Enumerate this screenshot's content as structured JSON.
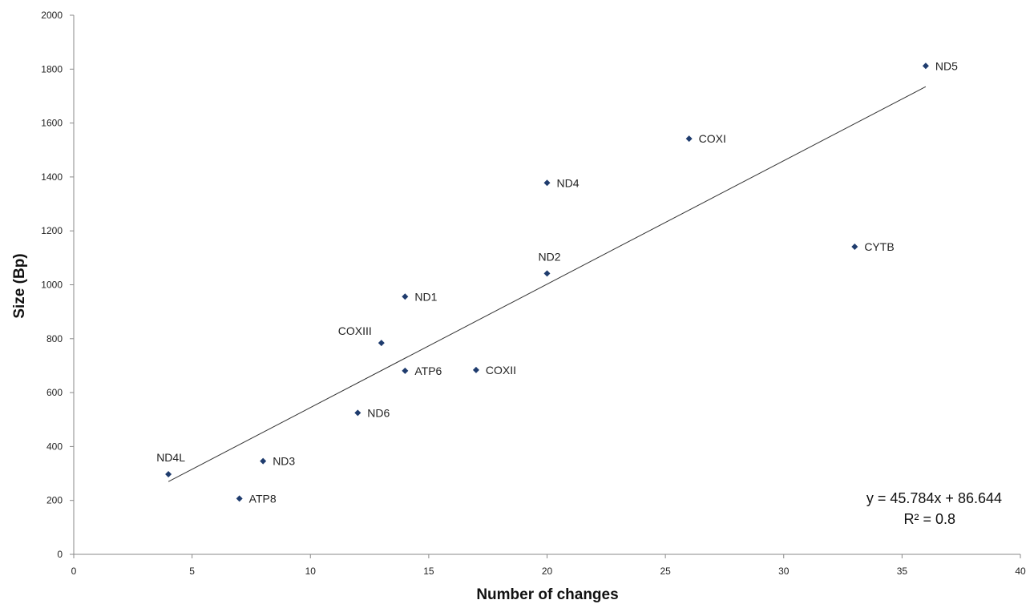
{
  "chart_data": {
    "type": "scatter",
    "title": "",
    "xlabel": "Number of changes",
    "ylabel": "Size (Bp)",
    "xlim": [
      0,
      40
    ],
    "ylim": [
      0,
      2000
    ],
    "x_ticks": [
      0,
      5,
      10,
      15,
      20,
      25,
      30,
      35,
      40
    ],
    "y_ticks": [
      0,
      200,
      400,
      600,
      800,
      1000,
      1200,
      1400,
      1600,
      1800,
      2000
    ],
    "grid": false,
    "legend": "none",
    "marker_color": "#1f3c6e",
    "points": [
      {
        "label": "ND4L",
        "x": 4,
        "y": 297,
        "label_pos": "above"
      },
      {
        "label": "ATP8",
        "x": 7,
        "y": 207,
        "label_pos": "right"
      },
      {
        "label": "ND3",
        "x": 8,
        "y": 346,
        "label_pos": "right"
      },
      {
        "label": "ND6",
        "x": 12,
        "y": 525,
        "label_pos": "right"
      },
      {
        "label": "COXIII",
        "x": 13,
        "y": 784,
        "label_pos": "above-left"
      },
      {
        "label": "ND1",
        "x": 14,
        "y": 956,
        "label_pos": "right"
      },
      {
        "label": "ATP6",
        "x": 14,
        "y": 681,
        "label_pos": "right"
      },
      {
        "label": "COXII",
        "x": 17,
        "y": 684,
        "label_pos": "right"
      },
      {
        "label": "ND2",
        "x": 20,
        "y": 1042,
        "label_pos": "above"
      },
      {
        "label": "ND4",
        "x": 20,
        "y": 1378,
        "label_pos": "right"
      },
      {
        "label": "COXI",
        "x": 26,
        "y": 1542,
        "label_pos": "right"
      },
      {
        "label": "CYTB",
        "x": 33,
        "y": 1141,
        "label_pos": "right"
      },
      {
        "label": "ND5",
        "x": 36,
        "y": 1812,
        "label_pos": "right"
      }
    ],
    "trendline": {
      "slope": 45.784,
      "intercept": 86.644,
      "x_range": [
        4,
        36
      ],
      "equation_text": "y = 45.784x + 86.644",
      "r2_text": "R² = 0.8"
    }
  }
}
